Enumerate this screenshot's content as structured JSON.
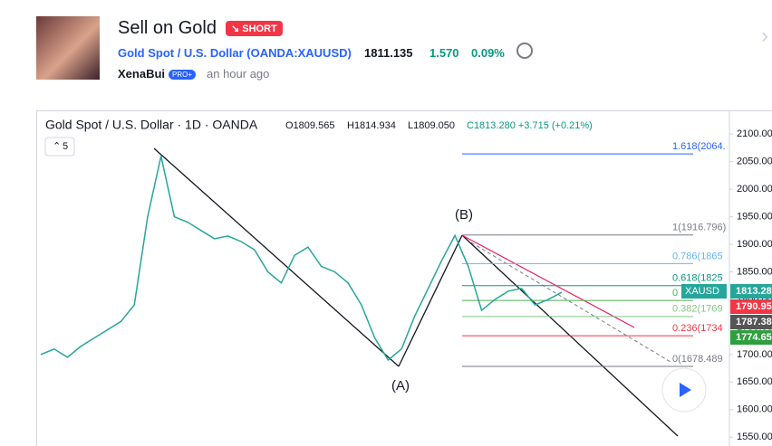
{
  "header": {
    "title": "Sell on Gold",
    "badge": "SHORT",
    "symbol": "Gold Spot / U.S. Dollar (OANDA:XAUUSD)",
    "price": "1811.135",
    "change": "1.570",
    "change_pct": "0.09%",
    "author": "XenaBui",
    "author_badge": "PRO+",
    "time": "an hour ago"
  },
  "chart_data": {
    "type": "line",
    "title": "Gold Spot / U.S. Dollar · 1D · OANDA",
    "ohlc": [
      "O1809.565",
      "H1814.934",
      "L1809.050",
      "C1813.280 +3.715 (+0.21%)"
    ],
    "interval": "5",
    "series": [
      {
        "name": "XAUUSD",
        "color": "#26a69a",
        "values": [
          1700,
          1710,
          1695,
          1715,
          1730,
          1745,
          1760,
          1790,
          1950,
          2060,
          1950,
          1940,
          1925,
          1910,
          1915,
          1905,
          1890,
          1850,
          1830,
          1880,
          1895,
          1860,
          1850,
          1830,
          1790,
          1730,
          1690,
          1710,
          1770,
          1820,
          1870,
          1916,
          1860,
          1780,
          1800,
          1815,
          1820,
          1790,
          1800,
          1813
        ]
      }
    ],
    "ylim": [
      1534,
      2143
    ],
    "yticks": [
      {
        "value": 2100,
        "label": "2100.00"
      },
      {
        "value": 2050,
        "label": "2050.00"
      },
      {
        "value": 2000,
        "label": "2000.00"
      },
      {
        "value": 1950,
        "label": "1950.00"
      },
      {
        "value": 1900,
        "label": "1900.00"
      },
      {
        "value": 1850,
        "label": "1850.00"
      },
      {
        "value": 1800,
        "label": "1800.00"
      },
      {
        "value": 1750,
        "label": "1750.00"
      },
      {
        "value": 1700,
        "label": "1700.00"
      },
      {
        "value": 1650,
        "label": "1650.00"
      },
      {
        "value": 1600,
        "label": "1600.00"
      },
      {
        "value": 1550,
        "label": "1550.00"
      }
    ],
    "fib_levels": [
      {
        "value": 2064,
        "label": "1.618(2064.",
        "color": "#2962ff"
      },
      {
        "value": 1916.796,
        "label": "1(1916.796)",
        "color": "#787b86"
      },
      {
        "value": 1865,
        "label": "0.786(1865",
        "color": "#64b5f6"
      },
      {
        "value": 1825,
        "label": "0.618(1825",
        "color": "#089981"
      },
      {
        "value": 1798,
        "label": "0",
        "color": "#4caf50"
      },
      {
        "value": 1769,
        "label": "0.382(1769",
        "color": "#81c784"
      },
      {
        "value": 1734,
        "label": "0.236(1734",
        "color": "#f23645"
      },
      {
        "value": 1678.489,
        "label": "0(1678.489",
        "color": "#787b86"
      }
    ],
    "annotations": [
      "(A)",
      "(B)"
    ],
    "price_tags": [
      {
        "label": "XAUSD",
        "value": "1813.28",
        "color": "#26a69a"
      },
      {
        "value": "1790.95",
        "color": "#f23645"
      },
      {
        "value": "1787.38",
        "color": "#555555"
      },
      {
        "value": "1774.65",
        "color": "#2e9e3e"
      }
    ]
  }
}
